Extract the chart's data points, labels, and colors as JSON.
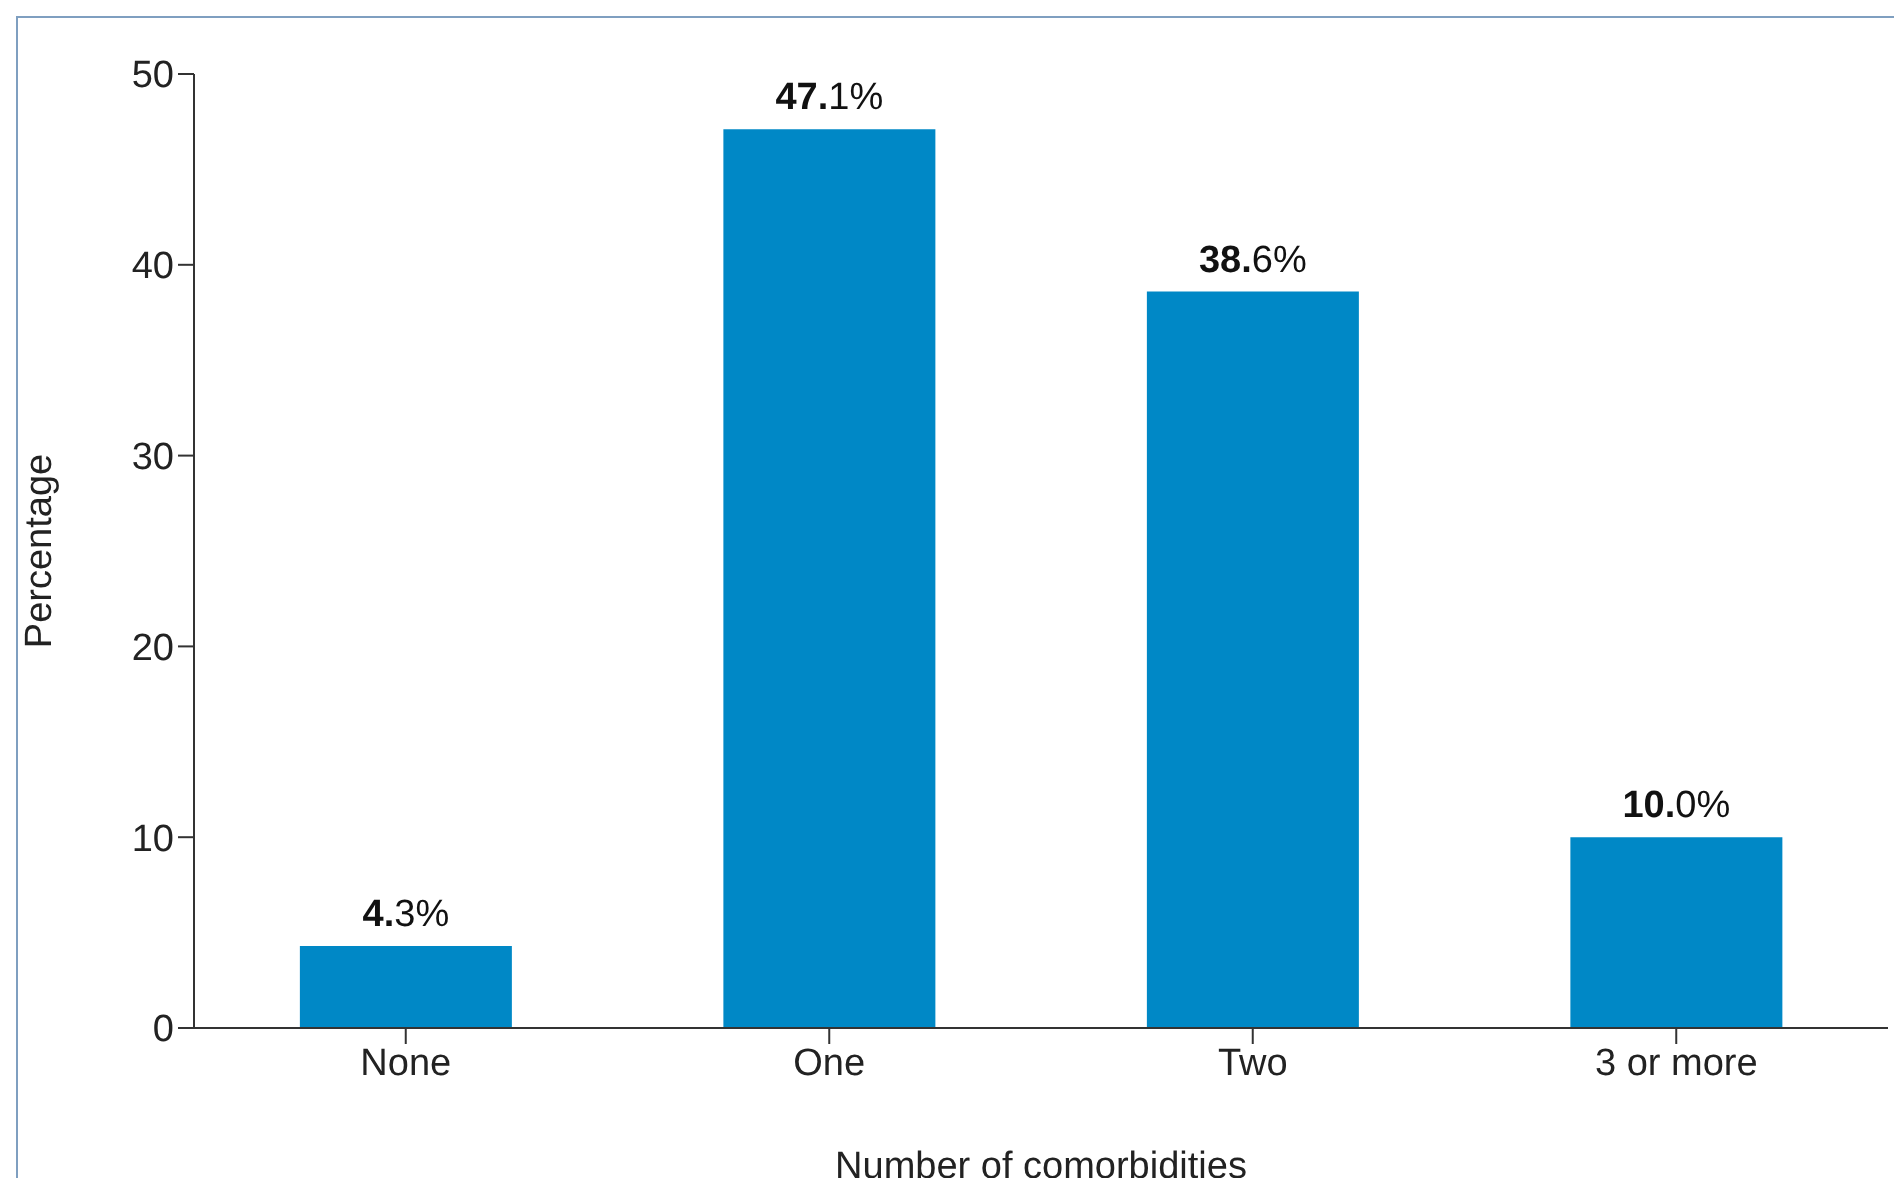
{
  "chart_data": {
    "type": "bar",
    "xlabel": "Number of comorbidities",
    "ylabel": "Percentage",
    "categories": [
      "None",
      "One",
      "Two",
      "3 or more"
    ],
    "values": [
      4.3,
      47.1,
      38.6,
      10.0
    ],
    "value_labels": [
      "4.3%",
      "47.1%",
      "38.6%",
      "10.0%"
    ],
    "color": "#0088c6",
    "ylim": [
      0,
      50
    ],
    "yticks": [
      0,
      10,
      20,
      30,
      40,
      50
    ]
  }
}
